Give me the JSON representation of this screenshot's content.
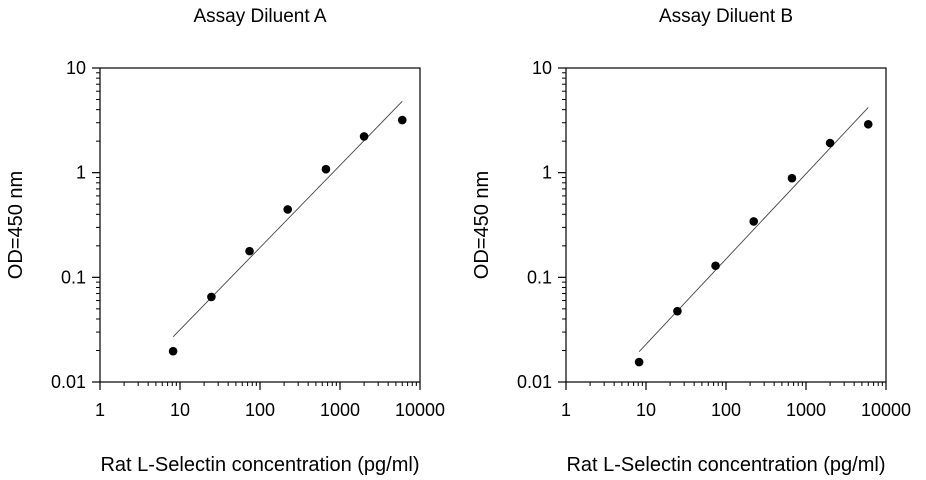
{
  "chart_data": [
    {
      "type": "scatter",
      "title": "Assay Diluent A",
      "xlabel": "Rat L-Selectin concentration (pg/ml)",
      "ylabel": "OD=450 nm",
      "x_scale": "log",
      "y_scale": "log",
      "xlim": [
        1,
        10000
      ],
      "ylim": [
        0.01,
        10
      ],
      "x_ticks": [
        1,
        10,
        100,
        1000,
        10000
      ],
      "x_tick_labels": [
        "1",
        "10",
        "100",
        "1000",
        "10000"
      ],
      "y_ticks": [
        0.01,
        0.1,
        1,
        10
      ],
      "y_tick_labels": [
        "0.01",
        "0.1",
        "1",
        "10"
      ],
      "grid": false,
      "legend": "none",
      "points": {
        "x": [
          8.2,
          24.7,
          74,
          222,
          667,
          2000,
          6000
        ],
        "y": [
          0.0197,
          0.065,
          0.178,
          0.445,
          1.08,
          2.22,
          3.18
        ]
      },
      "fit_line": {
        "x": [
          8.2,
          6000
        ],
        "y": [
          0.027,
          4.8
        ]
      }
    },
    {
      "type": "scatter",
      "title": "Assay Diluent B",
      "xlabel": "Rat L-Selectin concentration (pg/ml)",
      "ylabel": "OD=450 nm",
      "x_scale": "log",
      "y_scale": "log",
      "xlim": [
        1,
        10000
      ],
      "ylim": [
        0.01,
        10
      ],
      "x_ticks": [
        1,
        10,
        100,
        1000,
        10000
      ],
      "x_tick_labels": [
        "1",
        "10",
        "100",
        "1000",
        "10000"
      ],
      "y_ticks": [
        0.01,
        0.1,
        1,
        10
      ],
      "y_tick_labels": [
        "0.01",
        "0.1",
        "1",
        "10"
      ],
      "grid": false,
      "legend": "none",
      "points": {
        "x": [
          8.2,
          24.7,
          74,
          222,
          667,
          2000,
          6000
        ],
        "y": [
          0.0155,
          0.0475,
          0.129,
          0.342,
          0.885,
          1.92,
          2.9
        ]
      },
      "fit_line": {
        "x": [
          8.2,
          6000
        ],
        "y": [
          0.0195,
          4.2
        ]
      }
    }
  ]
}
